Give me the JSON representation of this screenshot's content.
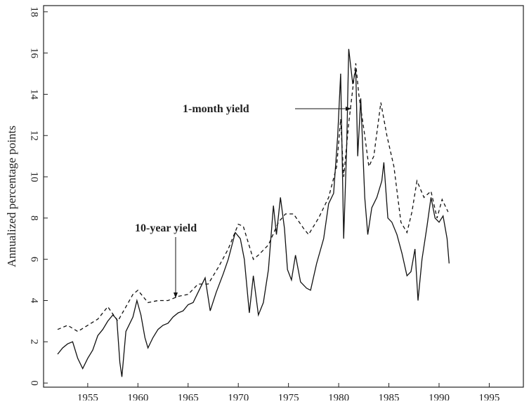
{
  "chart_data": {
    "type": "line",
    "y_label": "Annualized percentage points",
    "annotations": [
      "1-month yield",
      "10-year yield"
    ],
    "xlim": [
      1950.6,
      1998.4
    ],
    "ylim": [
      -0.2,
      18.3
    ],
    "xticks": [
      1955,
      1960,
      1965,
      1970,
      1975,
      1980,
      1985,
      1990,
      1995
    ],
    "yticks": [
      0,
      2,
      4,
      6,
      8,
      10,
      12,
      14,
      16,
      18
    ],
    "series": [
      {
        "name": "1-month yield",
        "color": "#111",
        "dash": "none",
        "x": [
          1952.0,
          1952.5,
          1953.0,
          1953.5,
          1954.0,
          1954.5,
          1955.0,
          1955.5,
          1956.0,
          1956.5,
          1957.0,
          1957.5,
          1957.9,
          1958.2,
          1958.4,
          1958.8,
          1959.5,
          1959.9,
          1960.3,
          1960.7,
          1961.0,
          1961.5,
          1962.0,
          1962.5,
          1963.0,
          1963.5,
          1964.0,
          1964.5,
          1965.0,
          1965.5,
          1966.0,
          1966.7,
          1967.2,
          1967.8,
          1968.5,
          1969.0,
          1969.7,
          1970.2,
          1970.6,
          1971.1,
          1971.5,
          1972.0,
          1972.5,
          1973.0,
          1973.5,
          1973.8,
          1974.2,
          1974.6,
          1974.9,
          1975.3,
          1975.7,
          1976.2,
          1976.8,
          1977.2,
          1977.8,
          1978.5,
          1979.0,
          1979.5,
          1979.9,
          1980.2,
          1980.5,
          1980.8,
          1981.0,
          1981.4,
          1981.7,
          1981.9,
          1982.2,
          1982.6,
          1982.9,
          1983.3,
          1983.8,
          1984.3,
          1984.5,
          1984.9,
          1985.3,
          1985.8,
          1986.3,
          1986.8,
          1987.2,
          1987.6,
          1987.9,
          1988.3,
          1988.8,
          1989.2,
          1989.6,
          1990.0,
          1990.4,
          1990.8,
          1991.0
        ],
        "values": [
          1.4,
          1.7,
          1.9,
          2.0,
          1.2,
          0.7,
          1.2,
          1.6,
          2.3,
          2.6,
          3.0,
          3.3,
          3.1,
          1.0,
          0.3,
          2.5,
          3.2,
          4.0,
          3.3,
          2.2,
          1.7,
          2.2,
          2.6,
          2.8,
          2.9,
          3.2,
          3.4,
          3.5,
          3.8,
          3.9,
          4.4,
          5.1,
          3.5,
          4.4,
          5.3,
          6.0,
          7.3,
          7.0,
          6.0,
          3.4,
          5.2,
          3.3,
          3.9,
          5.5,
          8.6,
          7.2,
          9.0,
          7.5,
          5.5,
          5.0,
          6.2,
          4.9,
          4.6,
          4.5,
          5.8,
          7.0,
          8.7,
          9.2,
          12.0,
          15.0,
          7.0,
          11.5,
          16.2,
          14.5,
          15.2,
          11.0,
          13.8,
          9.0,
          7.2,
          8.5,
          9.0,
          9.8,
          10.7,
          8.0,
          7.8,
          7.2,
          6.3,
          5.2,
          5.4,
          6.5,
          4.0,
          6.0,
          7.6,
          9.0,
          8.0,
          7.8,
          8.1,
          7.0,
          5.8
        ]
      },
      {
        "name": "10-year yield",
        "color": "#111",
        "dash": "5 4",
        "x": [
          1952,
          1953,
          1954,
          1955,
          1956,
          1957,
          1958,
          1959.5,
          1960,
          1961,
          1962,
          1963,
          1964,
          1965,
          1966,
          1967,
          1968,
          1969,
          1970,
          1970.5,
          1971.5,
          1972,
          1973,
          1974,
          1974.7,
          1975.5,
          1976.5,
          1977,
          1978,
          1979,
          1979.8,
          1980.2,
          1980.5,
          1981,
          1981.7,
          1982,
          1982.6,
          1983,
          1983.5,
          1984.2,
          1984.8,
          1985.5,
          1986.2,
          1986.8,
          1987.3,
          1987.8,
          1988.5,
          1989.2,
          1989.8,
          1990.3,
          1990.9
        ],
        "values": [
          2.6,
          2.8,
          2.5,
          2.8,
          3.1,
          3.7,
          3.0,
          4.3,
          4.5,
          3.9,
          4.0,
          4.0,
          4.2,
          4.3,
          4.8,
          4.8,
          5.6,
          6.5,
          7.7,
          7.6,
          6.0,
          6.2,
          6.7,
          7.8,
          8.2,
          8.2,
          7.5,
          7.2,
          8.0,
          9.0,
          10.5,
          12.8,
          10.0,
          12.6,
          15.5,
          14.0,
          12.0,
          10.5,
          11.0,
          13.6,
          12.0,
          10.5,
          7.8,
          7.3,
          8.3,
          9.8,
          9.0,
          9.3,
          8.0,
          8.9,
          8.3
        ]
      }
    ]
  }
}
